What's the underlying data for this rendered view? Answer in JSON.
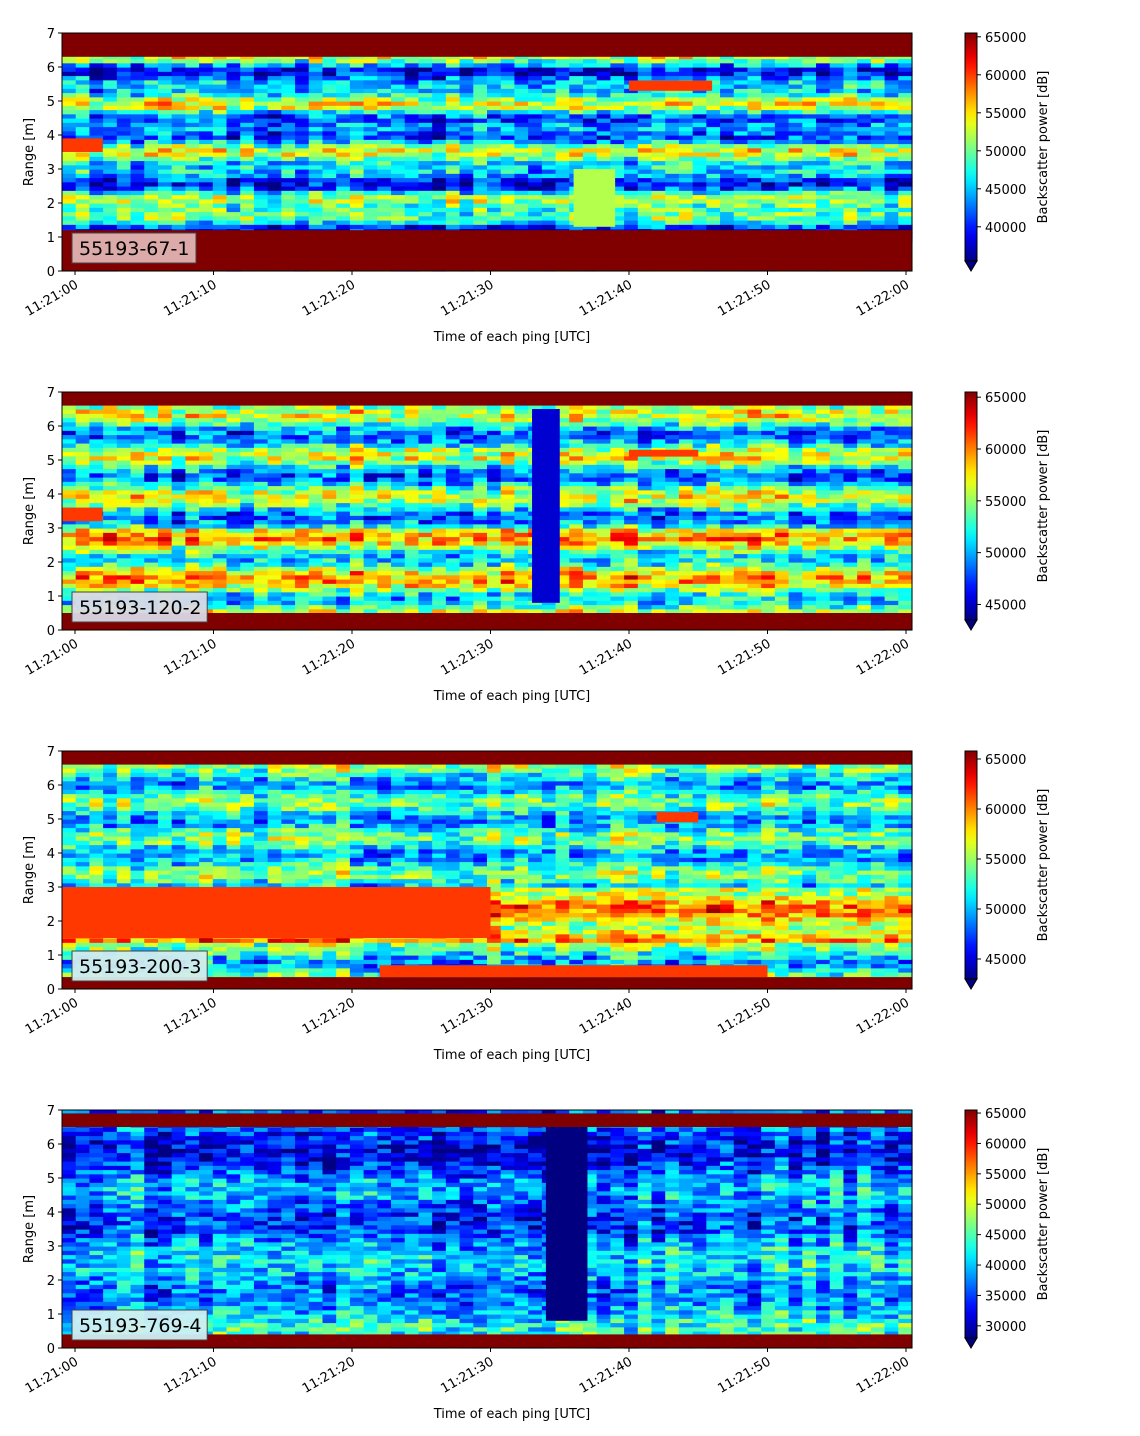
{
  "figure": {
    "panels": [
      {
        "label": "55193-67-1",
        "label_bg": "#e2b3b3",
        "cbar_ticks": [
          "65000",
          "60000",
          "55000",
          "50000",
          "45000",
          "40000"
        ],
        "cbar_label": "Backscatter power [dB]"
      },
      {
        "label": "55193-120-2",
        "label_bg": "#d9d9e6",
        "cbar_ticks": [
          "65000",
          "60000",
          "55000",
          "50000",
          "45000"
        ],
        "cbar_label": "Backscatter power [dB]"
      },
      {
        "label": "55193-200-3",
        "label_bg": "#d3ecec",
        "cbar_ticks": [
          "65000",
          "60000",
          "55000",
          "50000",
          "45000"
        ],
        "cbar_label": "Backscatter power [dB]"
      },
      {
        "label": "55193-769-4",
        "label_bg": "#cfeef2",
        "cbar_ticks": [
          "65000",
          "60000",
          "55000",
          "50000",
          "45000",
          "40000",
          "35000",
          "30000"
        ],
        "cbar_label": "Backscatter power [dB]"
      }
    ],
    "xlabel": "Time of each ping [UTC]",
    "ylabel": "Range [m]",
    "xticks": [
      "11:21:00",
      "11:21:10",
      "11:21:20",
      "11:21:30",
      "11:21:40",
      "11:21:50",
      "11:22:00"
    ],
    "yticks": [
      "0",
      "1",
      "2",
      "3",
      "4",
      "5",
      "6",
      "7"
    ]
  },
  "chart_data": [
    {
      "type": "heatmap",
      "title": "",
      "annotation": "55193-67-1",
      "xlabel": "Time of each ping [UTC]",
      "ylabel": "Range [m]",
      "xlim": [
        "11:21:00",
        "11:22:00"
      ],
      "ylim": [
        0,
        7
      ],
      "colorbar": {
        "label": "Backscatter power [dB]",
        "range": [
          35500,
          65500
        ],
        "ticks": [
          40000,
          45000,
          50000,
          55000,
          60000,
          65000
        ],
        "colormap": "jet",
        "extend": "min"
      },
      "features": [
        {
          "range_m": [
            6.3,
            7.0
          ],
          "time": [
            "11:21:00",
            "11:22:00"
          ],
          "level": "max"
        },
        {
          "range_m": [
            0.0,
            1.2
          ],
          "time": [
            "11:21:00",
            "11:22:00"
          ],
          "level": "max"
        },
        {
          "range_m": [
            3.5,
            3.9
          ],
          "time": [
            "11:21:00",
            "11:21:02"
          ],
          "level": "high"
        },
        {
          "range_m": [
            1.3,
            3.0
          ],
          "time": [
            "11:21:36",
            "11:21:39"
          ],
          "level": "medium"
        },
        {
          "range_m": [
            5.3,
            5.6
          ],
          "time": [
            "11:21:40",
            "11:21:46"
          ],
          "level": "high"
        }
      ]
    },
    {
      "type": "heatmap",
      "title": "",
      "annotation": "55193-120-2",
      "xlabel": "Time of each ping [UTC]",
      "ylabel": "Range [m]",
      "xlim": [
        "11:21:00",
        "11:22:00"
      ],
      "ylim": [
        0,
        7
      ],
      "colorbar": {
        "label": "Backscatter power [dB]",
        "range": [
          43500,
          65500
        ],
        "ticks": [
          45000,
          50000,
          55000,
          60000,
          65000
        ],
        "colormap": "jet",
        "extend": "min"
      },
      "features": [
        {
          "range_m": [
            6.6,
            7.0
          ],
          "time": [
            "11:21:00",
            "11:22:00"
          ],
          "level": "max"
        },
        {
          "range_m": [
            0.0,
            0.5
          ],
          "time": [
            "11:21:00",
            "11:22:00"
          ],
          "level": "max"
        },
        {
          "range_m": [
            3.2,
            3.6
          ],
          "time": [
            "11:21:00",
            "11:21:02"
          ],
          "level": "high"
        },
        {
          "range_m": [
            0.8,
            6.5
          ],
          "time": [
            "11:21:33",
            "11:21:35"
          ],
          "level": "low"
        },
        {
          "range_m": [
            5.1,
            5.3
          ],
          "time": [
            "11:21:40",
            "11:21:45"
          ],
          "level": "high"
        }
      ]
    },
    {
      "type": "heatmap",
      "title": "",
      "annotation": "55193-200-3",
      "xlabel": "Time of each ping [UTC]",
      "ylabel": "Range [m]",
      "xlim": [
        "11:21:00",
        "11:22:00"
      ],
      "ylim": [
        0,
        7
      ],
      "colorbar": {
        "label": "Backscatter power [dB]",
        "range": [
          43000,
          65800
        ],
        "ticks": [
          45000,
          50000,
          55000,
          60000,
          65000
        ],
        "colormap": "jet",
        "extend": "min"
      },
      "features": [
        {
          "range_m": [
            6.6,
            7.0
          ],
          "time": [
            "11:21:00",
            "11:22:00"
          ],
          "level": "max"
        },
        {
          "range_m": [
            0.0,
            0.35
          ],
          "time": [
            "11:21:00",
            "11:22:00"
          ],
          "level": "max"
        },
        {
          "range_m": [
            1.5,
            3.0
          ],
          "time": [
            "11:21:00",
            "11:21:30"
          ],
          "level": "high"
        },
        {
          "range_m": [
            0.35,
            0.7
          ],
          "time": [
            "11:21:22",
            "11:21:50"
          ],
          "level": "high"
        },
        {
          "range_m": [
            4.9,
            5.2
          ],
          "time": [
            "11:21:42",
            "11:21:45"
          ],
          "level": "high"
        }
      ]
    },
    {
      "type": "heatmap",
      "title": "",
      "annotation": "55193-769-4",
      "xlabel": "Time of each ping [UTC]",
      "ylabel": "Range [m]",
      "xlim": [
        "11:21:00",
        "11:22:00"
      ],
      "ylim": [
        0,
        7
      ],
      "colorbar": {
        "label": "Backscatter power [dB]",
        "range": [
          28000,
          65500
        ],
        "ticks": [
          30000,
          35000,
          40000,
          45000,
          50000,
          55000,
          60000,
          65000
        ],
        "colormap": "jet",
        "extend": "min"
      },
      "features": [
        {
          "range_m": [
            6.5,
            6.9
          ],
          "time": [
            "11:21:00",
            "11:22:00"
          ],
          "level": "max"
        },
        {
          "range_m": [
            0.0,
            0.4
          ],
          "time": [
            "11:21:00",
            "11:22:00"
          ],
          "level": "max"
        },
        {
          "range_m": [
            0.8,
            6.5
          ],
          "time": [
            "11:21:34",
            "11:21:37"
          ],
          "level": "min"
        }
      ]
    }
  ]
}
